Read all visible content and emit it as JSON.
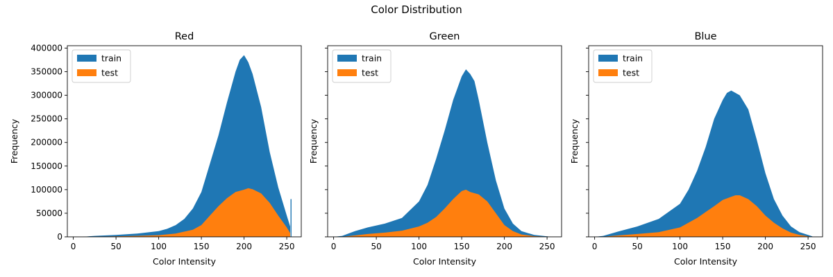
{
  "figure": {
    "title": "Color Distribution"
  },
  "chart_data": [
    {
      "type": "area",
      "title": "Red",
      "xlabel": "Color Intensity",
      "ylabel": "Frequency",
      "xlim": [
        -7,
        267
      ],
      "ylim": [
        0,
        405000
      ],
      "xticks": [
        0,
        50,
        100,
        150,
        200,
        250
      ],
      "yticks": [
        0,
        50000,
        100000,
        150000,
        200000,
        250000,
        300000,
        350000,
        400000
      ],
      "legend": "top-left",
      "series": [
        {
          "name": "train",
          "color": "#1f77b4",
          "x": [
            10,
            25,
            50,
            75,
            100,
            110,
            120,
            130,
            140,
            150,
            160,
            170,
            180,
            190,
            195,
            200,
            205,
            210,
            220,
            230,
            240,
            250,
            254
          ],
          "y": [
            0,
            2000,
            4000,
            7000,
            12000,
            17000,
            25000,
            38000,
            60000,
            95000,
            155000,
            215000,
            285000,
            350000,
            375000,
            385000,
            370000,
            345000,
            275000,
            180000,
            105000,
            45000,
            22000
          ],
          "spikes": [
            {
              "x": 255,
              "y": 80000
            }
          ]
        },
        {
          "name": "test",
          "color": "#ff7f0e",
          "x": [
            10,
            25,
            50,
            75,
            100,
            120,
            140,
            150,
            160,
            170,
            180,
            190,
            200,
            205,
            210,
            220,
            230,
            240,
            250,
            254
          ],
          "y": [
            0,
            500,
            1000,
            2000,
            3500,
            7000,
            15000,
            25000,
            45000,
            65000,
            82000,
            95000,
            100000,
            103000,
            101000,
            92000,
            72000,
            45000,
            20000,
            8000
          ]
        }
      ]
    },
    {
      "type": "area",
      "title": "Green",
      "xlabel": "Color Intensity",
      "ylabel": "Frequency",
      "xlim": [
        -7,
        267
      ],
      "ylim": [
        0,
        405000
      ],
      "xticks": [
        0,
        50,
        100,
        150,
        200,
        250
      ],
      "yticks": [
        0,
        50000,
        100000,
        150000,
        200000,
        250000,
        300000,
        350000,
        400000
      ],
      "legend": "top-left",
      "series": [
        {
          "name": "train",
          "color": "#1f77b4",
          "x": [
            0,
            10,
            25,
            40,
            60,
            80,
            100,
            110,
            120,
            130,
            140,
            150,
            155,
            160,
            165,
            170,
            180,
            190,
            200,
            210,
            220,
            235,
            250,
            255
          ],
          "y": [
            0,
            2000,
            12000,
            20000,
            28000,
            40000,
            75000,
            110000,
            165000,
            225000,
            290000,
            340000,
            355000,
            345000,
            330000,
            290000,
            200000,
            120000,
            60000,
            28000,
            12000,
            4000,
            1000,
            0
          ]
        },
        {
          "name": "test",
          "color": "#ff7f0e",
          "x": [
            0,
            10,
            25,
            40,
            60,
            80,
            100,
            110,
            120,
            130,
            140,
            150,
            155,
            160,
            170,
            180,
            190,
            200,
            210,
            220,
            235,
            250,
            255
          ],
          "y": [
            0,
            500,
            3000,
            6000,
            9000,
            13000,
            22000,
            30000,
            42000,
            60000,
            80000,
            97000,
            100000,
            95000,
            90000,
            75000,
            50000,
            25000,
            12000,
            5000,
            1500,
            500,
            0
          ]
        }
      ]
    },
    {
      "type": "area",
      "title": "Blue",
      "xlabel": "Color Intensity",
      "ylabel": "Frequency",
      "xlim": [
        -7,
        267
      ],
      "ylim": [
        0,
        405000
      ],
      "xticks": [
        0,
        50,
        100,
        150,
        200,
        250
      ],
      "yticks": [
        0,
        50000,
        100000,
        150000,
        200000,
        250000,
        300000,
        350000,
        400000
      ],
      "legend": "top-left",
      "series": [
        {
          "name": "train",
          "color": "#1f77b4",
          "x": [
            0,
            10,
            25,
            50,
            75,
            100,
            110,
            120,
            130,
            140,
            150,
            155,
            160,
            165,
            170,
            180,
            190,
            200,
            210,
            220,
            230,
            240,
            250,
            255
          ],
          "y": [
            0,
            2000,
            10000,
            22000,
            38000,
            70000,
            100000,
            140000,
            190000,
            250000,
            290000,
            305000,
            310000,
            305000,
            300000,
            270000,
            205000,
            135000,
            80000,
            45000,
            22000,
            10000,
            4000,
            1000
          ]
        },
        {
          "name": "test",
          "color": "#ff7f0e",
          "x": [
            0,
            10,
            25,
            50,
            75,
            100,
            120,
            140,
            150,
            160,
            165,
            170,
            180,
            190,
            200,
            210,
            220,
            230,
            240,
            250,
            255
          ],
          "y": [
            0,
            500,
            2500,
            6000,
            10000,
            20000,
            40000,
            65000,
            78000,
            85000,
            88000,
            88000,
            80000,
            65000,
            45000,
            30000,
            18000,
            9000,
            4000,
            1000,
            0
          ]
        }
      ]
    }
  ]
}
